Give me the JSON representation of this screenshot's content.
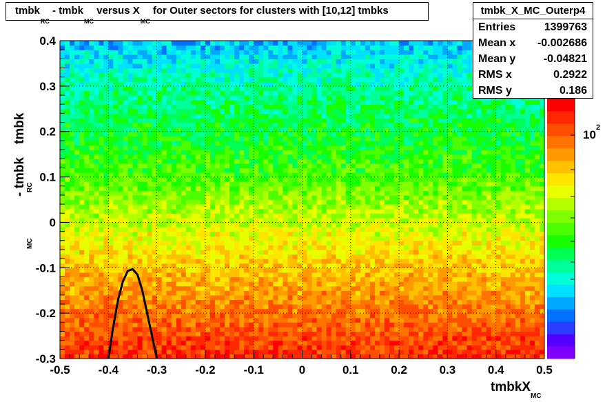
{
  "title": {
    "main": "tmbk",
    "sub_rc": "RC",
    "minus": " - tmbk",
    "sub_mc": "MC",
    "mid": " versus X",
    "sub_mc2": "MC",
    "tail": " for Outer sectors for clusters with [10,12] tmbks"
  },
  "stats": {
    "name": "tmbk_X_MC_Outerp4",
    "rows": [
      {
        "label": "Entries",
        "value": "1399763"
      },
      {
        "label": "Mean x",
        "value": "-0.002686"
      },
      {
        "label": "Mean y",
        "value": "-0.04821"
      },
      {
        "label": "RMS x",
        "value": "0.2922"
      },
      {
        "label": "RMS y",
        "value": "0.186"
      }
    ]
  },
  "colorbar": {
    "label": "10",
    "exponent": "2"
  },
  "chart_data": {
    "type": "heatmap",
    "title": "tmbk_RC - tmbk_MC versus X_MC for Outer sectors for clusters with [10,12] tmbks",
    "xlabel": "tmbkX",
    "xlabel_sub": "MC",
    "ylabel": "tmbk",
    "ylabel_sub_rc": "RC",
    "ylabel_mid": " - tmbk",
    "ylabel_sub_mc": "MC",
    "xlim": [
      -0.5,
      0.5
    ],
    "ylim": [
      -0.3,
      0.4
    ],
    "x_ticks": [
      "-0.5",
      "-0.4",
      "-0.3",
      "-0.2",
      "-0.1",
      "0",
      "0.1",
      "0.2",
      "0.3",
      "0.4",
      "0.5"
    ],
    "y_ticks": [
      "-0.3",
      "-0.2",
      "-0.1",
      "0",
      "0.1",
      "0.2",
      "0.3",
      "0.4"
    ],
    "grid": true,
    "bins_x": 100,
    "bins_y": 70,
    "intensity_profile_y": [
      [
        -0.3,
        0.95
      ],
      [
        -0.2,
        0.85
      ],
      [
        -0.1,
        0.74
      ],
      [
        0.0,
        0.62
      ],
      [
        0.1,
        0.5
      ],
      [
        0.2,
        0.42
      ],
      [
        0.3,
        0.35
      ],
      [
        0.4,
        0.22
      ]
    ],
    "overlay_curve": {
      "color": "#000000",
      "points": [
        [
          -0.4,
          -0.3
        ],
        [
          -0.39,
          -0.23
        ],
        [
          -0.38,
          -0.17
        ],
        [
          -0.37,
          -0.13
        ],
        [
          -0.36,
          -0.107
        ],
        [
          -0.35,
          -0.103
        ],
        [
          -0.34,
          -0.115
        ],
        [
          -0.33,
          -0.15
        ],
        [
          -0.32,
          -0.2
        ],
        [
          -0.31,
          -0.25
        ],
        [
          -0.3,
          -0.3
        ]
      ]
    }
  }
}
